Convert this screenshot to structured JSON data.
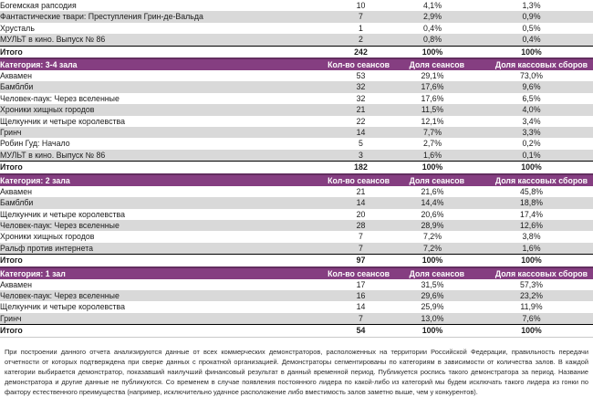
{
  "colors": {
    "category_header_bg": "#853e81",
    "category_header_top_border": "#622e5f",
    "alt_row_bg": "#d9d9d9"
  },
  "table": {
    "column_headers": {
      "sessions": "Кол-во сеансов",
      "sessions_share": "Доля сеансов",
      "boxoffice_share": "Доля кассовых сборов"
    },
    "total_label": "Итого",
    "sections": [
      {
        "category": null,
        "rows": [
          {
            "title": "Богемская рапсодия",
            "sessions": "10",
            "sessions_share": "4,1%",
            "boxoffice_share": "1,3%"
          },
          {
            "title": "Фантастические твари: Преступления Грин-де-Вальда",
            "sessions": "7",
            "sessions_share": "2,9%",
            "boxoffice_share": "0,9%"
          },
          {
            "title": "Хрусталь",
            "sessions": "1",
            "sessions_share": "0,4%",
            "boxoffice_share": "0,5%"
          },
          {
            "title": "МУЛЬТ в кино. Выпуск № 86",
            "sessions": "2",
            "sessions_share": "0,8%",
            "boxoffice_share": "0,4%"
          }
        ],
        "total": {
          "sessions": "242",
          "sessions_share": "100%",
          "boxoffice_share": "100%"
        }
      },
      {
        "category": "Категория: 3-4 зала",
        "rows": [
          {
            "title": "Аквамен",
            "sessions": "53",
            "sessions_share": "29,1%",
            "boxoffice_share": "73,0%"
          },
          {
            "title": "Бамблби",
            "sessions": "32",
            "sessions_share": "17,6%",
            "boxoffice_share": "9,6%"
          },
          {
            "title": "Человек-паук: Через вселенные",
            "sessions": "32",
            "sessions_share": "17,6%",
            "boxoffice_share": "6,5%"
          },
          {
            "title": "Хроники хищных городов",
            "sessions": "21",
            "sessions_share": "11,5%",
            "boxoffice_share": "4,0%"
          },
          {
            "title": "Щелкунчик и четыре королевства",
            "sessions": "22",
            "sessions_share": "12,1%",
            "boxoffice_share": "3,4%"
          },
          {
            "title": "Гринч",
            "sessions": "14",
            "sessions_share": "7,7%",
            "boxoffice_share": "3,3%"
          },
          {
            "title": "Робин Гуд: Начало",
            "sessions": "5",
            "sessions_share": "2,7%",
            "boxoffice_share": "0,2%"
          },
          {
            "title": "МУЛЬТ в кино. Выпуск № 86",
            "sessions": "3",
            "sessions_share": "1,6%",
            "boxoffice_share": "0,1%"
          }
        ],
        "total": {
          "sessions": "182",
          "sessions_share": "100%",
          "boxoffice_share": "100%"
        }
      },
      {
        "category": "Категория: 2 зала",
        "rows": [
          {
            "title": "Аквамен",
            "sessions": "21",
            "sessions_share": "21,6%",
            "boxoffice_share": "45,8%"
          },
          {
            "title": "Бамблби",
            "sessions": "14",
            "sessions_share": "14,4%",
            "boxoffice_share": "18,8%"
          },
          {
            "title": "Щелкунчик и четыре королевства",
            "sessions": "20",
            "sessions_share": "20,6%",
            "boxoffice_share": "17,4%"
          },
          {
            "title": "Человек-паук: Через вселенные",
            "sessions": "28",
            "sessions_share": "28,9%",
            "boxoffice_share": "12,6%"
          },
          {
            "title": "Хроники хищных городов",
            "sessions": "7",
            "sessions_share": "7,2%",
            "boxoffice_share": "3,8%"
          },
          {
            "title": "Ральф против интернета",
            "sessions": "7",
            "sessions_share": "7,2%",
            "boxoffice_share": "1,6%"
          }
        ],
        "total": {
          "sessions": "97",
          "sessions_share": "100%",
          "boxoffice_share": "100%"
        }
      },
      {
        "category": "Категория: 1 зал",
        "rows": [
          {
            "title": "Аквамен",
            "sessions": "17",
            "sessions_share": "31,5%",
            "boxoffice_share": "57,3%"
          },
          {
            "title": "Человек-паук: Через вселенные",
            "sessions": "16",
            "sessions_share": "29,6%",
            "boxoffice_share": "23,2%"
          },
          {
            "title": "Щелкунчик и четыре королевства",
            "sessions": "14",
            "sessions_share": "25,9%",
            "boxoffice_share": "11,9%"
          },
          {
            "title": "Гринч",
            "sessions": "7",
            "sessions_share": "13,0%",
            "boxoffice_share": "7,6%"
          }
        ],
        "total": {
          "sessions": "54",
          "sessions_share": "100%",
          "boxoffice_share": "100%"
        }
      }
    ]
  },
  "footnote": "При построении данного отчета анализируются данные от всех коммерческих демонстраторов, расположенных на территории Российской Федерации, правильность передачи отчетности от которых подтверждена при сверке данных с прокатной организацией. Демонстраторы сегментированы по категориям в зависимости от количества залов. В каждой категории выбирается демонстратор, показавший наилучший финансовый результат в данный временной период. Публикуется роспись такого демонстратора за период. Название демонстратора и другие данные не публикуются. Со временем в случае появления постоянного лидера по какой-либо из категорий мы будем исключать такого лидера из гонки по фактору естественного преимущества (например, исключительно удачное расположение либо вместимость залов заметно выше, чем у конкурентов)."
}
